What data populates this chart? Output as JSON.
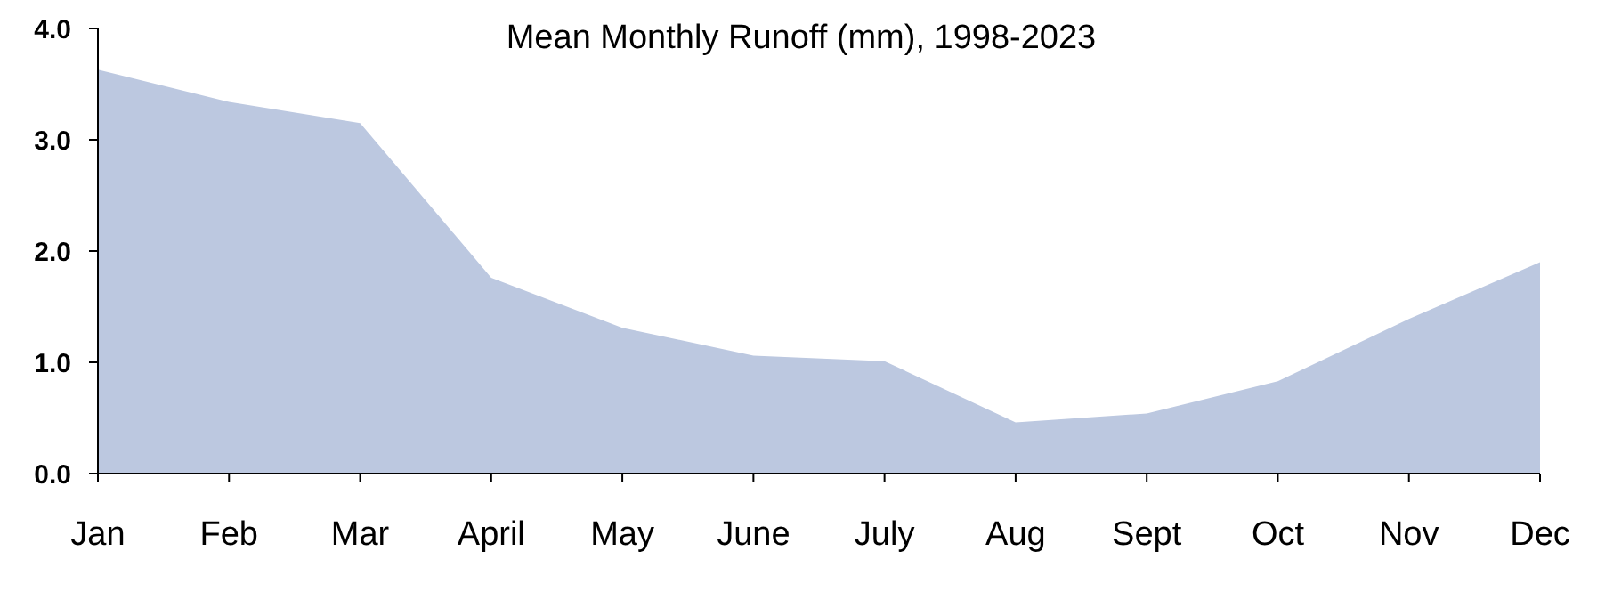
{
  "chart_data": {
    "type": "area",
    "title": "Mean Monthly Runoff (mm), 1998-2023",
    "categories": [
      "Jan",
      "Feb",
      "Mar",
      "April",
      "May",
      "June",
      "July",
      "Aug",
      "Sept",
      "Oct",
      "Nov",
      "Dec"
    ],
    "values": [
      3.63,
      3.34,
      3.15,
      1.76,
      1.31,
      1.06,
      1.01,
      0.46,
      0.54,
      0.83,
      1.39,
      1.9
    ],
    "color": "#bcc8e0",
    "ylim": [
      0,
      4
    ],
    "yticks": [
      {
        "value": 0,
        "label": "0.0"
      },
      {
        "value": 1,
        "label": "1.0"
      },
      {
        "value": 2,
        "label": "2.0"
      },
      {
        "value": 3,
        "label": "3.0"
      },
      {
        "value": 4,
        "label": "4.0"
      }
    ],
    "grid": false
  }
}
